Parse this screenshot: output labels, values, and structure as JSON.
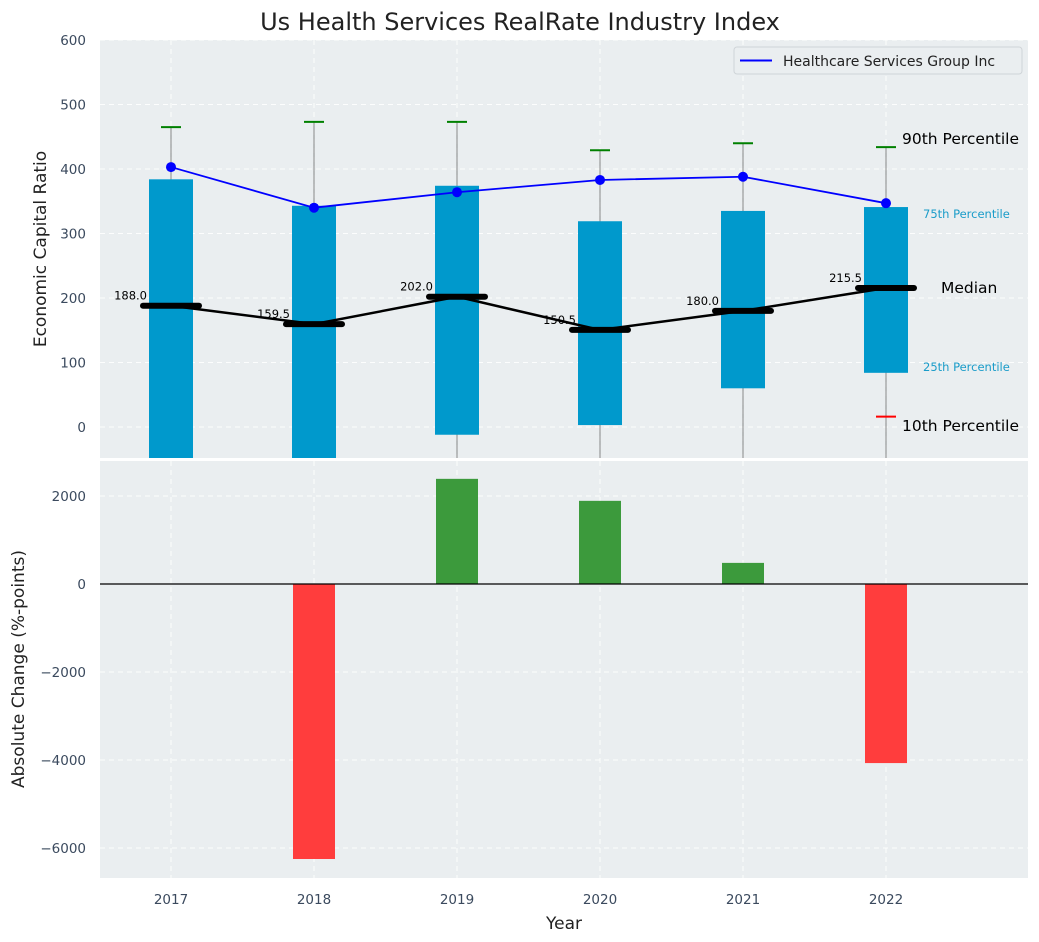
{
  "chart_data": [
    {
      "type": "bar",
      "subtype": "percentile-range-with-line",
      "title": "Us Health Services RealRate Industry Index",
      "xlabel": "",
      "ylabel": "Economic Capital Ratio",
      "ylim": [
        -48,
        600
      ],
      "yticks": [
        0,
        100,
        200,
        300,
        400,
        500,
        600
      ],
      "grid": true,
      "categories": [
        "2017",
        "2018",
        "2019",
        "2020",
        "2021",
        "2022"
      ],
      "percentile_90": [
        465,
        473,
        473,
        429,
        440,
        434
      ],
      "percentile_75": [
        384,
        343,
        374,
        319,
        335,
        341
      ],
      "median": [
        188.0,
        159.5,
        202.0,
        150.5,
        180.0,
        215.5
      ],
      "median_labels": [
        "188.0",
        "159.5",
        "202.0",
        "150.5",
        "180.0",
        "215.5"
      ],
      "percentile_25": [
        -60,
        -60,
        -12,
        3,
        60,
        84
      ],
      "percentile_10": [
        null,
        null,
        null,
        null,
        null,
        16
      ],
      "series": [
        {
          "name": "Healthcare Services Group Inc",
          "values": [
            403,
            340,
            364,
            383,
            388,
            347
          ],
          "color": "#0000ff"
        }
      ],
      "legend": {
        "position": "top-right",
        "entries": [
          "Healthcare Services Group Inc"
        ]
      },
      "annotations": {
        "p90": "90th Percentile",
        "p75": "75th Percentile",
        "median": "Median",
        "p25": "25th Percentile",
        "p10": "10th Percentile"
      },
      "colors": {
        "box": "#0099cc",
        "p90_tick": "#008000",
        "p10_tick": "#ff0000",
        "median": "#000000",
        "whisker": "#808080"
      }
    },
    {
      "type": "bar",
      "title": "",
      "xlabel": "Year",
      "ylabel": "Absolute Change (%-points)",
      "ylim": [
        -6700,
        2750
      ],
      "yticks": [
        -6000,
        -4000,
        -2000,
        0,
        2000
      ],
      "ytick_labels": [
        "−6000",
        "−4000",
        "−2000",
        "0",
        "2000"
      ],
      "grid": true,
      "categories": [
        "2017",
        "2018",
        "2019",
        "2020",
        "2021",
        "2022"
      ],
      "values": [
        0,
        -6250,
        2390,
        1890,
        480,
        -4070
      ],
      "colors": {
        "positive": "#3c9a3c",
        "negative": "#ff3d3d"
      }
    }
  ]
}
